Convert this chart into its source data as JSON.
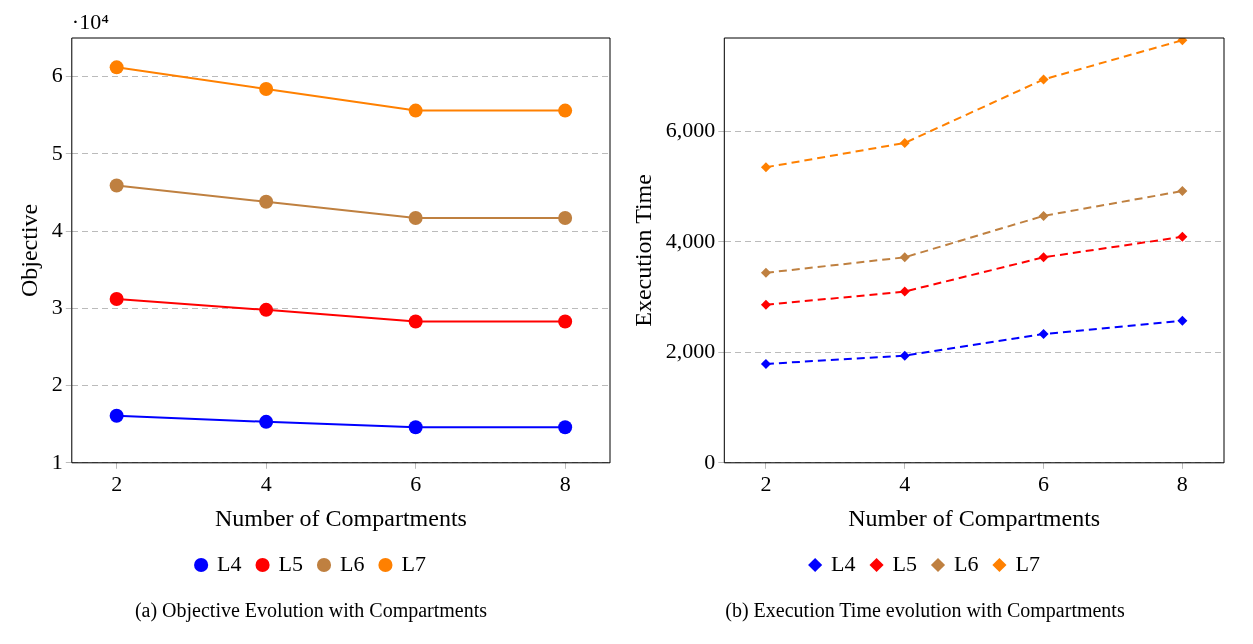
{
  "chart_data": [
    {
      "type": "line",
      "title": "(a) Objective Evolution with Compartments",
      "xlabel": "Number of Compartments",
      "ylabel": "Objective",
      "annotations": [
        "·10⁴"
      ],
      "x": [
        2,
        4,
        6,
        8
      ],
      "xlim": [
        1.4,
        8.6
      ],
      "xticks": [
        2,
        4,
        6,
        8
      ],
      "ylim": [
        1,
        6.5
      ],
      "yticks": [
        1,
        2,
        3,
        4,
        5,
        6
      ],
      "grid": "y",
      "legend": "bottom",
      "marker": "circle",
      "line_style": "solid",
      "series": [
        {
          "name": "L4",
          "color": "#0000ff",
          "values": [
            1.61,
            1.53,
            1.46,
            1.46
          ]
        },
        {
          "name": "L5",
          "color": "#ff0000",
          "values": [
            3.12,
            2.98,
            2.83,
            2.83
          ]
        },
        {
          "name": "L6",
          "color": "#bf8040",
          "values": [
            4.59,
            4.38,
            4.17,
            4.17
          ]
        },
        {
          "name": "L7",
          "color": "#ff8000",
          "values": [
            6.12,
            5.84,
            5.56,
            5.56
          ]
        }
      ]
    },
    {
      "type": "line",
      "title": "(b) Execution Time evolution with Compartments",
      "xlabel": "Number of Compartments",
      "ylabel": "Execution Time",
      "x": [
        2,
        4,
        6,
        8
      ],
      "xlim": [
        1.4,
        8.6
      ],
      "xticks": [
        2,
        4,
        6,
        8
      ],
      "ylim": [
        0,
        7690
      ],
      "yticks": [
        0,
        {
          "value": 2000,
          "label": "2,000"
        },
        {
          "value": 4000,
          "label": "4,000"
        },
        {
          "value": 6000,
          "label": "6,000"
        }
      ],
      "grid": "y",
      "legend": "bottom",
      "marker": "diamond",
      "line_style": "dashed",
      "series": [
        {
          "name": "L4",
          "color": "#0000ff",
          "values": [
            1790,
            1940,
            2330,
            2570
          ]
        },
        {
          "name": "L5",
          "color": "#ff0000",
          "values": [
            2860,
            3100,
            3720,
            4090
          ]
        },
        {
          "name": "L6",
          "color": "#bf8040",
          "values": [
            3440,
            3720,
            4470,
            4920
          ]
        },
        {
          "name": "L7",
          "color": "#ff8000",
          "values": [
            5350,
            5790,
            6940,
            7650
          ]
        }
      ]
    }
  ]
}
